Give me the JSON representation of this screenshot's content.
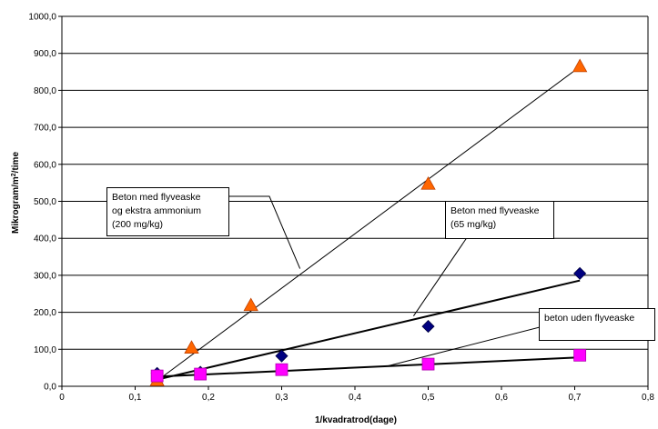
{
  "chart_data": {
    "type": "scatter",
    "xlabel": "1/kvadratrod(dage)",
    "ylabel_main": "Mikrogram/m",
    "ylabel_sup": "2",
    "ylabel_tail": "/time",
    "xlim": [
      0,
      0.8
    ],
    "ylim": [
      0,
      1000
    ],
    "x_ticks": [
      "0",
      "0,1",
      "0,2",
      "0,3",
      "0,4",
      "0,5",
      "0,6",
      "0,7",
      "0,8"
    ],
    "y_ticks": [
      "0,0",
      "100,0",
      "200,0",
      "300,0",
      "400,0",
      "500,0",
      "600,0",
      "700,0",
      "800,0",
      "900,0",
      "1000,0"
    ],
    "grid": "horizontal",
    "series": [
      {
        "name": "Beton med flyveaske og ekstra ammonium (200 mg/kg)",
        "marker": "triangle",
        "color": "#FF6600",
        "points": [
          [
            0.13,
            15
          ],
          [
            0.177,
            103
          ],
          [
            0.258,
            218
          ],
          [
            0.5,
            546
          ],
          [
            0.707,
            864
          ]
        ],
        "trend": [
          [
            0.13,
            15
          ],
          [
            0.707,
            864
          ]
        ]
      },
      {
        "name": "Beton med flyveaske (65 mg/kg)",
        "marker": "diamond",
        "color": "#000080",
        "points": [
          [
            0.13,
            35
          ],
          [
            0.189,
            38
          ],
          [
            0.3,
            82
          ],
          [
            0.5,
            162
          ],
          [
            0.707,
            305
          ]
        ],
        "trend": [
          [
            0.13,
            18
          ],
          [
            0.707,
            286
          ]
        ]
      },
      {
        "name": "beton uden flyveaske",
        "marker": "square",
        "color": "#FF00FF",
        "points": [
          [
            0.13,
            28
          ],
          [
            0.189,
            33
          ],
          [
            0.3,
            45
          ],
          [
            0.5,
            60
          ],
          [
            0.707,
            84
          ]
        ],
        "trend": [
          [
            0.13,
            26
          ],
          [
            0.707,
            78
          ]
        ]
      }
    ],
    "callouts": [
      {
        "text": "Beton med flyveaske\nog ekstra ammonium\n(200 mg/kg)",
        "target": [
          0.325,
          318
        ]
      },
      {
        "text": "Beton med flyveaske\n(65 mg/kg)",
        "target": [
          0.48,
          190
        ]
      },
      {
        "text": "beton uden flyveaske",
        "target": [
          0.445,
          55
        ]
      }
    ]
  }
}
